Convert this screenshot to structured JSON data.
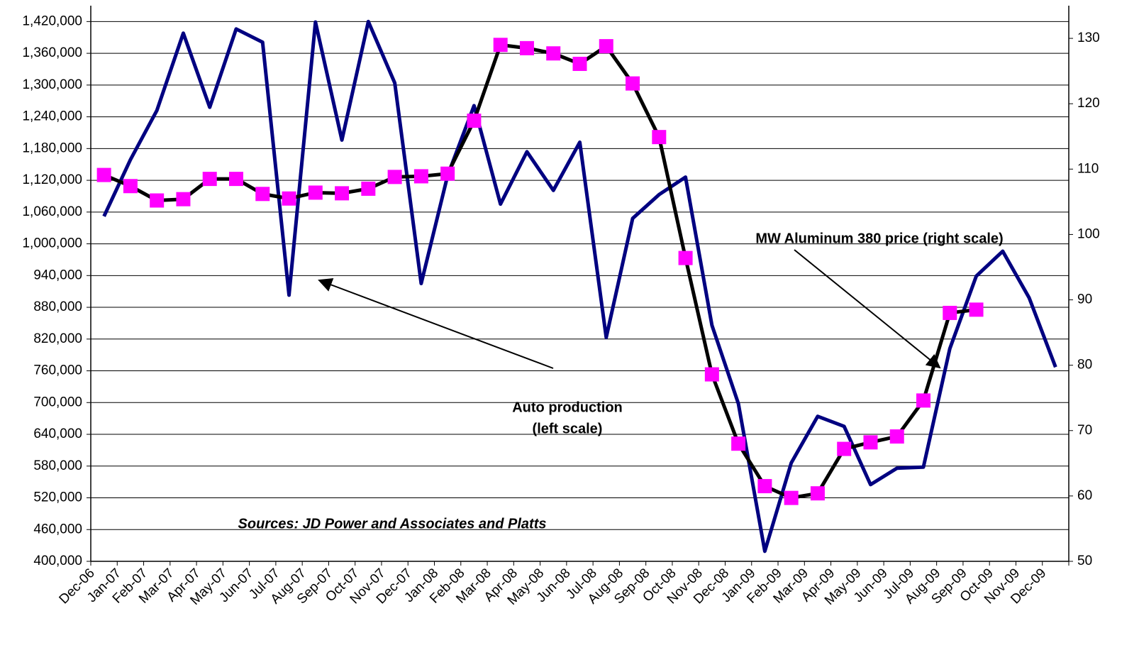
{
  "chart_data": {
    "type": "line",
    "categories": [
      "Dec-06",
      "Jan-07",
      "Feb-07",
      "Mar-07",
      "Apr-07",
      "May-07",
      "Jun-07",
      "Jul-07",
      "Aug-07",
      "Sep-07",
      "Oct-07",
      "Nov-07",
      "Dec-07",
      "Jan-08",
      "Feb-08",
      "Mar-08",
      "Apr-08",
      "May-08",
      "Jun-08",
      "Jul-08",
      "Aug-08",
      "Sep-08",
      "Oct-08",
      "Nov-08",
      "Dec-08",
      "Jan-09",
      "Feb-09",
      "Mar-09",
      "Apr-09",
      "May-09",
      "Jun-09",
      "Jul-09",
      "Aug-09",
      "Sep-09",
      "Oct-09",
      "Nov-09",
      "Dec-09"
    ],
    "series": [
      {
        "axis": "y",
        "color": "#000080",
        "values": [
          1052000,
          1159000,
          1252000,
          1398000,
          1258000,
          1406000,
          1381000,
          903000,
          1419000,
          1196000,
          1420000,
          1304000,
          925000,
          1129000,
          1261000,
          1075000,
          1174000,
          1101000,
          1192000,
          823000,
          1048000,
          1093000,
          1126000,
          846000,
          698000,
          419000,
          586000,
          674000,
          655000,
          545000,
          576000,
          578000,
          802000,
          939000,
          986000,
          898000,
          767000
        ]
      },
      {
        "axis": "y2",
        "color": "#000000",
        "marker_color": "#ff00ff",
        "values": [
          109.1,
          107.4,
          105.2,
          105.4,
          108.5,
          108.5,
          106.2,
          105.5,
          106.4,
          106.3,
          107.0,
          108.8,
          108.9,
          109.3,
          117.4,
          129.0,
          128.5,
          127.7,
          126.1,
          128.8,
          123.1,
          114.9,
          96.4,
          78.6,
          68.0,
          61.5,
          59.7,
          60.4,
          67.2,
          68.2,
          69.1,
          74.6,
          88.0,
          88.5,
          null,
          null,
          null
        ]
      }
    ],
    "ylim": [
      400000,
      1450000
    ],
    "yticks": [
      {
        "value": 400000,
        "label": "400,000"
      },
      {
        "value": 460000,
        "label": "460,000"
      },
      {
        "value": 520000,
        "label": "520,000"
      },
      {
        "value": 580000,
        "label": "580,000"
      },
      {
        "value": 640000,
        "label": "640,000"
      },
      {
        "value": 700000,
        "label": "700,000"
      },
      {
        "value": 760000,
        "label": "760,000"
      },
      {
        "value": 820000,
        "label": "820,000"
      },
      {
        "value": 880000,
        "label": "880,000"
      },
      {
        "value": 940000,
        "label": "940,000"
      },
      {
        "value": 1000000,
        "label": "1,000,000"
      },
      {
        "value": 1060000,
        "label": "1,060,000"
      },
      {
        "value": 1120000,
        "label": "1,120,000"
      },
      {
        "value": 1180000,
        "label": "1,180,000"
      },
      {
        "value": 1240000,
        "label": "1,240,000"
      },
      {
        "value": 1300000,
        "label": "1,300,000"
      },
      {
        "value": 1360000,
        "label": "1,360,000"
      },
      {
        "value": 1420000,
        "label": "1,420,000"
      }
    ],
    "y2lim": [
      50,
      135
    ],
    "y2ticks": [
      50,
      60,
      70,
      80,
      90,
      100,
      110,
      120,
      130
    ],
    "grid": true,
    "annotations": [
      "MW Aluminum 380 price (right scale)",
      "Auto production",
      "(left scale)"
    ],
    "source": "Sources: JD Power and Associates and Platts"
  }
}
